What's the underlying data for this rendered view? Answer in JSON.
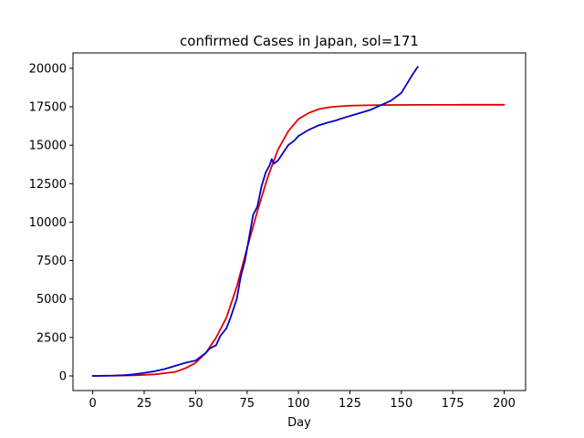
{
  "chart_data": {
    "type": "line",
    "title": "confirmed Cases in Japan, sol=171",
    "xlabel": "Day",
    "ylabel": "",
    "xlim": [
      -9.6,
      210.4
    ],
    "ylim": [
      -950,
      21000
    ],
    "xticks": [
      0,
      25,
      50,
      75,
      100,
      125,
      150,
      175,
      200
    ],
    "yticks": [
      0,
      2500,
      5000,
      7500,
      10000,
      12500,
      15000,
      17500,
      20000
    ],
    "grid": false,
    "series": [
      {
        "color": "#e00000",
        "x": [
          0,
          10,
          20,
          30,
          40,
          45,
          50,
          55,
          60,
          65,
          70,
          75,
          80,
          85,
          90,
          95,
          100,
          105,
          110,
          115,
          120,
          125,
          130,
          140,
          150,
          160,
          175,
          200
        ],
        "y": [
          5,
          15,
          40,
          100,
          260,
          500,
          850,
          1500,
          2500,
          3800,
          5800,
          8300,
          10700,
          12900,
          14700,
          15900,
          16700,
          17100,
          17350,
          17470,
          17530,
          17570,
          17590,
          17610,
          17620,
          17625,
          17628,
          17630
        ]
      },
      {
        "color": "#0000c8",
        "x": [
          0,
          10,
          15,
          20,
          25,
          30,
          35,
          40,
          45,
          50,
          55,
          57,
          60,
          62,
          65,
          67,
          70,
          72,
          74,
          76,
          78,
          80,
          82,
          84,
          86,
          87,
          88,
          90,
          92,
          95,
          98,
          100,
          105,
          110,
          115,
          118,
          120,
          125,
          130,
          135,
          140,
          145,
          150,
          155,
          158
        ],
        "y": [
          0,
          20,
          50,
          100,
          200,
          300,
          450,
          650,
          850,
          1000,
          1500,
          1800,
          2000,
          2600,
          3100,
          3800,
          5000,
          6500,
          7500,
          9000,
          10500,
          11000,
          12300,
          13200,
          13700,
          14100,
          13800,
          14000,
          14400,
          15000,
          15300,
          15600,
          16000,
          16300,
          16500,
          16600,
          16700,
          16900,
          17100,
          17300,
          17600,
          17900,
          18400,
          19500,
          20100
        ]
      }
    ]
  }
}
